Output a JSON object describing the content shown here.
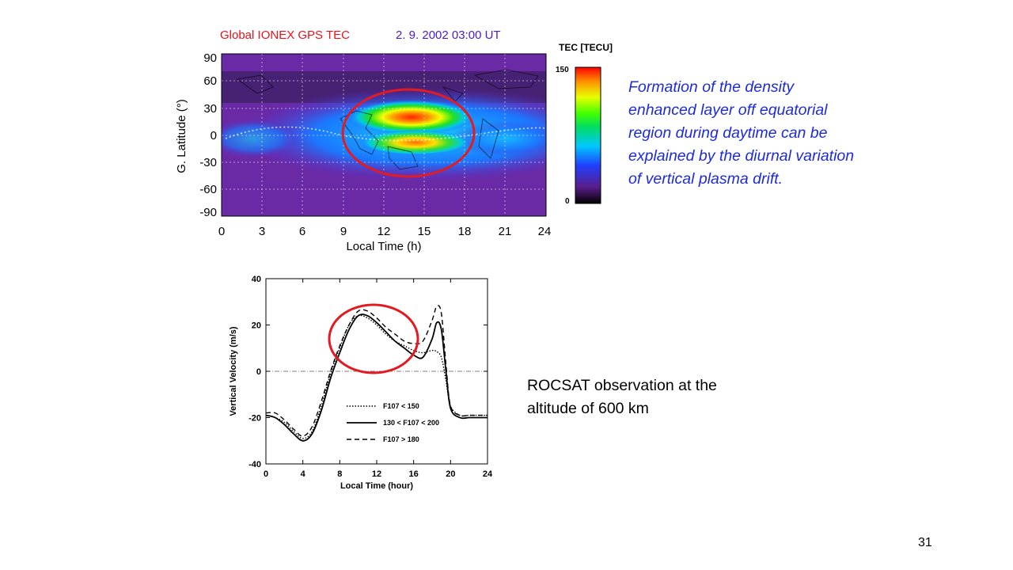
{
  "slide": {
    "number": "31",
    "note_blue": "Formation of the density enhanced layer off equatorial region during daytime can be explained by the diurnal variation of vertical plasma drift.",
    "note_black": "ROCSAT observation at the altitude of 600 km"
  },
  "colors": {
    "title_red": "#e8121b",
    "title_purple": "#4a1bc9",
    "note_blue": "#1d2bd8",
    "highlight_circle": "#e21b23"
  },
  "tec_map": {
    "title_left": "Global IONEX GPS TEC",
    "title_right": "2. 9. 2002  03:00 UT",
    "xlabel": "Local Time (h)",
    "ylabel": "G. Latitude (°)",
    "xticks": [
      "0",
      "3",
      "6",
      "9",
      "12",
      "15",
      "18",
      "21",
      "24"
    ],
    "yticks": [
      "90",
      "60",
      "30",
      "0",
      "-30",
      "-60",
      "-90"
    ],
    "colorbar": {
      "label": "TEC [TECU]",
      "max": "150",
      "min": "0"
    }
  },
  "chart_data": [
    {
      "type": "heatmap",
      "title": "Global IONEX GPS TEC   2. 9. 2002  03:00 UT",
      "xlabel": "Local Time (h)",
      "ylabel": "G. Latitude (°)",
      "xlim": [
        0,
        24
      ],
      "ylim": [
        -90,
        90
      ],
      "colorbar": {
        "label": "TEC [TECU]",
        "range": [
          0,
          150
        ]
      },
      "grid": true,
      "features": [
        {
          "local_time": 14,
          "latitude": 15,
          "tec": 150
        },
        {
          "local_time": 14,
          "latitude": -10,
          "tec": 120
        }
      ]
    },
    {
      "type": "line",
      "xlabel": "Local Time (hour)",
      "ylabel": "Vertical Velocity (m/s)",
      "xlim": [
        0,
        24
      ],
      "ylim": [
        -40,
        40
      ],
      "xticks": [
        "0",
        "4",
        "8",
        "12",
        "16",
        "20",
        "24"
      ],
      "yticks": [
        "40",
        "20",
        "0",
        "-20",
        "-40"
      ],
      "legend_position": "bottom-center",
      "series": [
        {
          "name": "F107 < 150",
          "style": "dotted",
          "x": [
            0,
            1,
            2,
            3,
            4,
            5,
            6,
            7,
            8,
            9,
            10,
            11,
            12,
            13,
            14,
            15,
            16,
            17,
            18,
            18.5,
            19,
            19.5,
            20,
            21,
            22,
            23,
            24
          ],
          "y": [
            -19,
            -20,
            -22,
            -26,
            -29,
            -26,
            -15,
            -1,
            10,
            20,
            24,
            23,
            20,
            16,
            13,
            11,
            9,
            8,
            9,
            8.5,
            6,
            -4,
            -15,
            -19,
            -19,
            -19,
            -19
          ]
        },
        {
          "name": "130 < F107 < 200",
          "style": "solid",
          "x": [
            0,
            1,
            2,
            3,
            4,
            5,
            6,
            7,
            8,
            9,
            10,
            11,
            12,
            13,
            14,
            15,
            16,
            17,
            18,
            18.5,
            19,
            19.5,
            20,
            21,
            22,
            23,
            24
          ],
          "y": [
            -19,
            -20,
            -23,
            -27,
            -30,
            -27,
            -17,
            -3,
            8,
            18,
            24,
            24,
            21,
            17,
            13,
            10,
            7,
            6,
            14,
            21,
            18,
            0,
            -16,
            -20,
            -20,
            -20,
            -20
          ]
        },
        {
          "name": "F107 > 180",
          "style": "dashed",
          "x": [
            0,
            1,
            2,
            3,
            4,
            5,
            6,
            7,
            8,
            9,
            10,
            11,
            12,
            13,
            14,
            15,
            16,
            17,
            18,
            18.5,
            19,
            19.5,
            20,
            21,
            22,
            23,
            24
          ],
          "y": [
            -18,
            -18,
            -21,
            -25,
            -28,
            -24,
            -13,
            0,
            11,
            20,
            26,
            26,
            23,
            19,
            16,
            13,
            12,
            13,
            22,
            28,
            25,
            3,
            -15,
            -19,
            -19,
            -19,
            -19
          ]
        }
      ]
    }
  ]
}
